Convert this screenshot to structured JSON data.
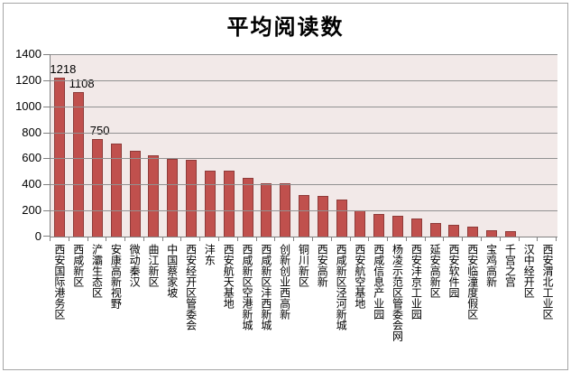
{
  "title": "平均阅读数",
  "colors": {
    "bar_fill": "#C0504D",
    "bar_border": "#8E3B39",
    "plot_background": "#F2E9E8",
    "gridline": "#919191",
    "axis": "#808080",
    "frame_border": "#A6A6A6",
    "text": "#000000"
  },
  "chart_data": {
    "type": "bar",
    "title": "平均阅读数",
    "categories": [
      "西安国际港务区",
      "西咸新区",
      "浐灞生态区",
      "安康高新视野",
      "微动秦汉",
      "曲江新区",
      "中国蔡家坡",
      "西安经开区管委会",
      "沣东",
      "西安航天基地",
      "西咸新区空港新城",
      "西咸新区沣西新城",
      "创新创业西高新",
      "铜川新区",
      "西安高新",
      "西咸新区泾河新城",
      "西安航空基地",
      "西咸信息产业园",
      "杨凌示范区管委会网",
      "西安沣京工业园",
      "延安高新区",
      "西安软件园",
      "西安临潼度假区",
      "宝鸡高新",
      "千宫之宫",
      "汉中经开区",
      "西安渭北工业区"
    ],
    "values": [
      1218,
      1108,
      750,
      712,
      660,
      622,
      598,
      586,
      505,
      503,
      450,
      412,
      408,
      322,
      315,
      285,
      200,
      172,
      158,
      140,
      103,
      88,
      76,
      48,
      40,
      0,
      0
    ],
    "point_labels": [
      "1218",
      "1108",
      "750"
    ],
    "xlabel": "",
    "ylabel": "",
    "ylim": [
      0,
      1400
    ],
    "yticks": [
      0,
      200,
      400,
      600,
      800,
      1000,
      1200,
      1400
    ],
    "grid": true,
    "legend": "none"
  }
}
